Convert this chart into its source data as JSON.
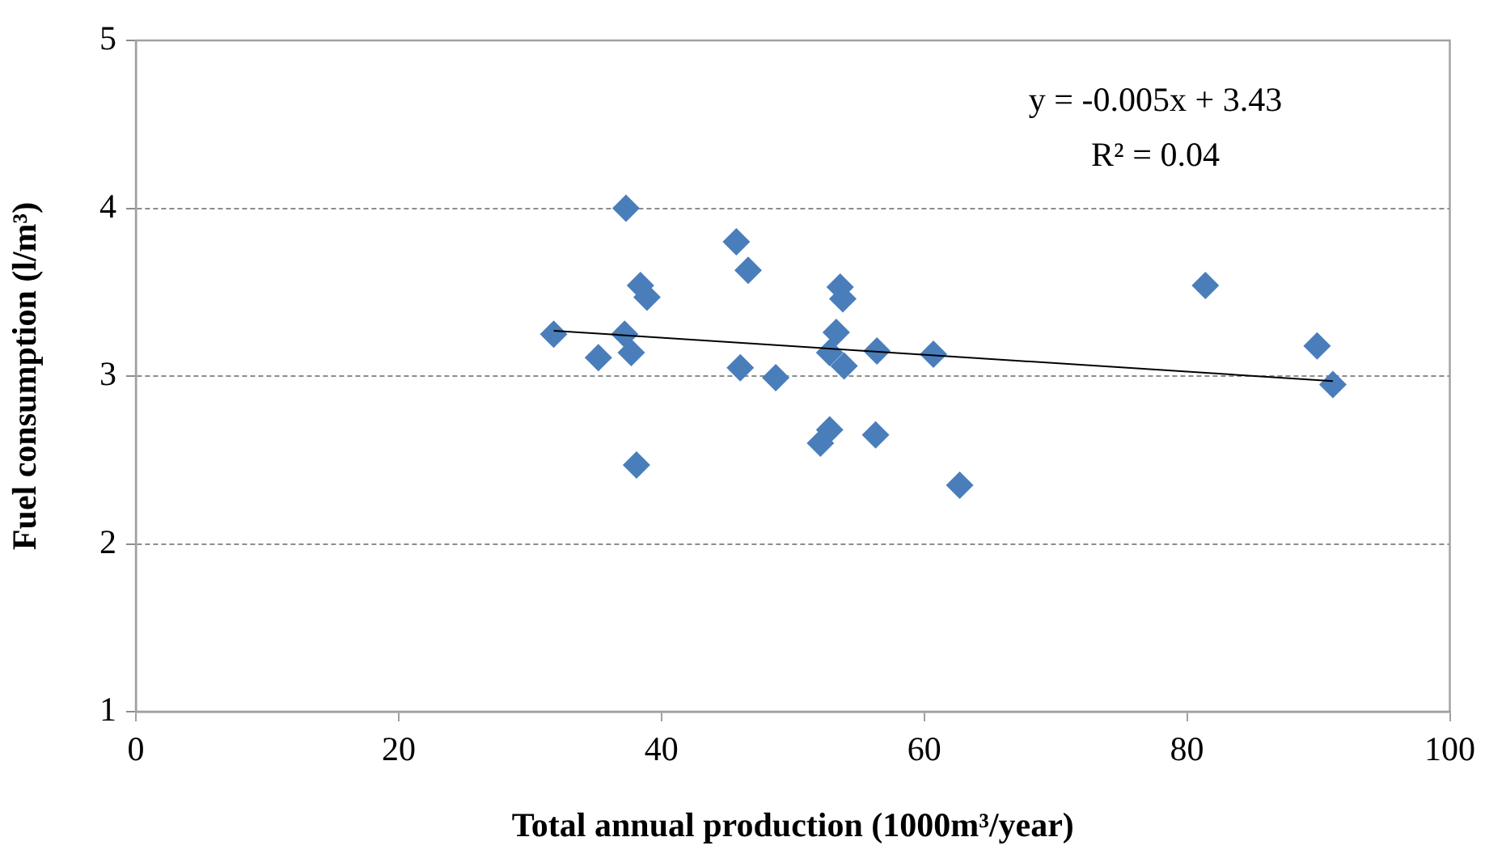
{
  "chart_data": {
    "type": "scatter",
    "xlabel": "Total annual production (1000m³/year)",
    "ylabel": "Fuel consumption (l/m³)",
    "xlim": [
      0,
      100
    ],
    "xticks": [
      0,
      20,
      40,
      60,
      80,
      100
    ],
    "ylim": [
      1,
      5
    ],
    "yticks": [
      1,
      2,
      3,
      4,
      5
    ],
    "grid": "y",
    "marker": "diamond",
    "legend": false,
    "annotations": [
      "y = -0.005x + 3.43",
      "R² = 0.04"
    ],
    "series": [
      {
        "color": "#4a7ebb",
        "x": [
          31.8,
          35.2,
          37.2,
          37.7,
          37.3,
          38.4,
          38.9,
          38.1,
          45.7,
          46.6,
          46.0,
          48.7,
          52.1,
          52.8,
          53.6,
          53.8,
          53.3,
          52.8,
          53.9,
          56.4,
          56.3,
          60.7,
          62.7,
          81.4,
          89.9,
          91.1
        ],
        "values": [
          3.25,
          3.11,
          3.25,
          3.14,
          4.0,
          3.54,
          3.47,
          2.47,
          3.8,
          3.63,
          3.05,
          2.99,
          2.6,
          2.68,
          3.53,
          3.46,
          3.26,
          3.14,
          3.06,
          3.15,
          2.65,
          3.13,
          2.35,
          3.54,
          3.18,
          2.95
        ]
      },
      {
        "type": "line",
        "color": "#000000",
        "marker": "none",
        "x": [
          31.8,
          91.1
        ],
        "values": [
          3.27,
          2.97
        ]
      }
    ]
  }
}
